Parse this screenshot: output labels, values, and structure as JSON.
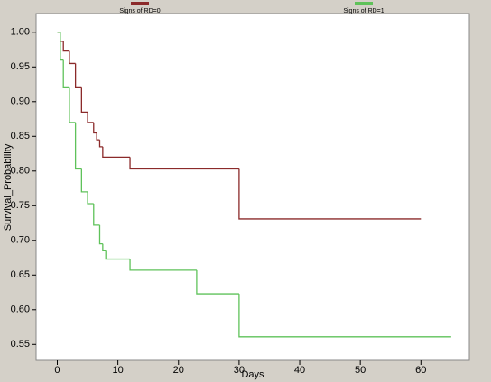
{
  "chart_data": {
    "type": "step",
    "x_label": "Days",
    "y_label": "Survival_Probability",
    "xlim": [
      -3.5,
      68
    ],
    "xticks": [
      0,
      10,
      20,
      30,
      40,
      50,
      60
    ],
    "ylim": [
      0.527,
      1.027
    ],
    "yticks": [
      0.55,
      {
        "value": 0.6,
        "label": "0.60"
      },
      0.65,
      {
        "value": 0.7,
        "label": "0.70"
      },
      0.75,
      {
        "value": 0.8,
        "label": "0.80"
      },
      0.85,
      {
        "value": 0.9,
        "label": "0.90"
      },
      0.95,
      {
        "value": 1,
        "label": "1.00"
      }
    ],
    "series": [
      {
        "name": "Signs of RD=0",
        "color": "#8b2a2a",
        "x": [
          0,
          0.5,
          1,
          2,
          3,
          4,
          5,
          6,
          6.5,
          7,
          7.5,
          12,
          30,
          60
        ],
        "values": [
          1.0,
          0.987,
          0.973,
          0.955,
          0.92,
          0.885,
          0.87,
          0.855,
          0.845,
          0.835,
          0.82,
          0.803,
          0.731,
          0.731
        ]
      },
      {
        "name": "Signs of RD=1",
        "color": "#5fc25a",
        "x": [
          0,
          0.5,
          1,
          2,
          3,
          4,
          5,
          6,
          7,
          7.5,
          8,
          12,
          23,
          30,
          65
        ],
        "values": [
          1.0,
          0.96,
          0.92,
          0.87,
          0.803,
          0.77,
          0.753,
          0.722,
          0.695,
          0.685,
          0.673,
          0.657,
          0.623,
          0.561,
          0.561
        ]
      }
    ]
  }
}
